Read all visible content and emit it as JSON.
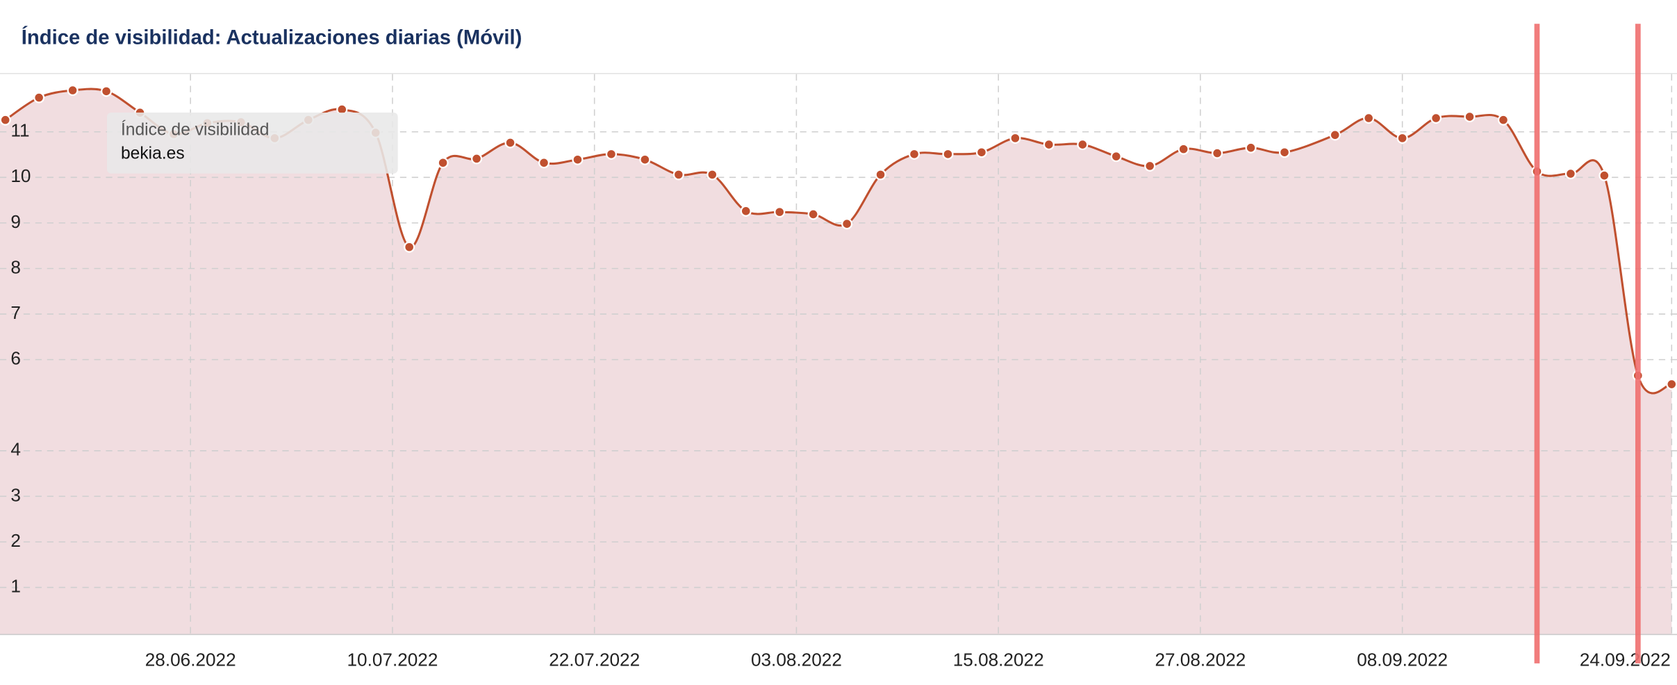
{
  "chart_data": {
    "type": "line",
    "title": "Índice de visibilidad: Actualizaciones diarias (Móvil)",
    "tooltip_title": "Índice de visibilidad",
    "x": [
      "17.06.2022",
      "19.06.2022",
      "21.06.2022",
      "23.06.2022",
      "25.06.2022",
      "27.06.2022",
      "29.06.2022",
      "01.07.2022",
      "03.07.2022",
      "05.07.2022",
      "07.07.2022",
      "09.07.2022",
      "11.07.2022",
      "13.07.2022",
      "15.07.2022",
      "17.07.2022",
      "19.07.2022",
      "21.07.2022",
      "23.07.2022",
      "25.07.2022",
      "27.07.2022",
      "29.07.2022",
      "31.07.2022",
      "02.08.2022",
      "04.08.2022",
      "06.08.2022",
      "08.08.2022",
      "10.08.2022",
      "12.08.2022",
      "14.08.2022",
      "16.08.2022",
      "18.08.2022",
      "20.08.2022",
      "22.08.2022",
      "24.08.2022",
      "26.08.2022",
      "28.08.2022",
      "30.08.2022",
      "01.09.2022",
      "04.09.2022",
      "06.09.2022",
      "08.09.2022",
      "10.09.2022",
      "12.09.2022",
      "14.09.2022",
      "16.09.2022",
      "18.09.2022",
      "20.09.2022",
      "22.09.2022",
      "24.09.2022"
    ],
    "series": [
      {
        "name": "bekia.es",
        "color": "#c0502f",
        "values": [
          11.26,
          11.75,
          11.91,
          11.89,
          11.42,
          10.95,
          11.19,
          11.21,
          10.86,
          11.26,
          11.49,
          10.98,
          8.47,
          10.32,
          10.41,
          10.76,
          10.32,
          10.39,
          10.51,
          10.39,
          10.06,
          10.06,
          9.26,
          9.24,
          9.19,
          8.98,
          10.06,
          10.51,
          10.51,
          10.55,
          10.86,
          10.72,
          10.72,
          10.46,
          10.25,
          10.62,
          10.53,
          10.65,
          10.55,
          10.93,
          11.3,
          10.86,
          11.3,
          11.33,
          11.26,
          10.13,
          10.08,
          10.04,
          5.65,
          5.46
        ]
      }
    ],
    "xlim": [
      "17.06.2022",
      "24.09.2022"
    ],
    "xticks": [
      "28.06.2022",
      "10.07.2022",
      "22.07.2022",
      "03.08.2022",
      "15.08.2022",
      "27.08.2022",
      "08.09.2022",
      "24.09.2022"
    ],
    "ylim": [
      0,
      12.25
    ],
    "yticks": [
      1,
      2,
      3,
      4,
      6,
      7,
      8,
      9,
      10,
      11
    ],
    "grid": true,
    "fill_color": "#f1dde0",
    "vlines": [
      "16.09.2022",
      "22.09.2022"
    ],
    "vline_color": "#f07070"
  }
}
